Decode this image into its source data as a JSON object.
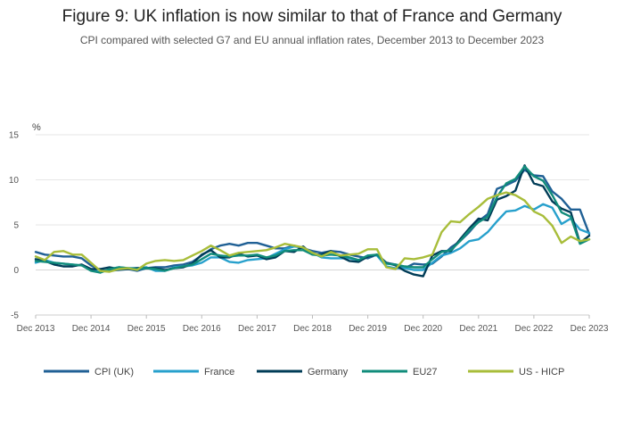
{
  "chart_data": {
    "type": "line",
    "title": "Figure 9: UK inflation is now similar to that of France and Germany",
    "subtitle": "CPI compared with selected G7 and EU annual inflation rates, December 2013 to December 2023",
    "ylabel": "%",
    "xlabel": "",
    "ylim": [
      -5,
      15
    ],
    "yticks": [
      -5,
      0,
      5,
      10,
      15
    ],
    "xticks": [
      "Dec 2013",
      "Dec 2014",
      "Dec 2015",
      "Dec 2016",
      "Dec 2017",
      "Dec 2018",
      "Dec 2019",
      "Dec 2020",
      "Dec 2021",
      "Dec 2022",
      "Dec 2023"
    ],
    "grid": "horizontal",
    "legend": "bottom",
    "x": [
      2013.917,
      2014.083,
      2014.25,
      2014.417,
      2014.583,
      2014.75,
      2014.917,
      2015.083,
      2015.25,
      2015.417,
      2015.583,
      2015.75,
      2015.917,
      2016.083,
      2016.25,
      2016.417,
      2016.583,
      2016.75,
      2016.917,
      2017.083,
      2017.25,
      2017.417,
      2017.583,
      2017.75,
      2017.917,
      2018.083,
      2018.25,
      2018.417,
      2018.583,
      2018.75,
      2018.917,
      2019.083,
      2019.25,
      2019.417,
      2019.583,
      2019.75,
      2019.917,
      2020.083,
      2020.25,
      2020.417,
      2020.583,
      2020.75,
      2020.917,
      2021.083,
      2021.25,
      2021.417,
      2021.583,
      2021.75,
      2021.917,
      2022.083,
      2022.25,
      2022.417,
      2022.583,
      2022.75,
      2022.917,
      2023.083,
      2023.25,
      2023.417,
      2023.583,
      2023.75,
      2023.917
    ],
    "series": [
      {
        "name": "CPI (UK)",
        "color": "#206095",
        "values": [
          2.0,
          1.7,
          1.6,
          1.5,
          1.5,
          1.3,
          0.5,
          0.0,
          -0.1,
          0.0,
          0.1,
          -0.1,
          0.2,
          0.3,
          0.3,
          0.5,
          0.6,
          0.9,
          1.6,
          2.3,
          2.7,
          2.9,
          2.7,
          3.0,
          3.0,
          2.7,
          2.4,
          2.4,
          2.7,
          2.4,
          2.1,
          1.9,
          2.1,
          2.0,
          1.7,
          1.5,
          1.3,
          1.7,
          0.8,
          0.6,
          0.2,
          0.7,
          0.6,
          0.7,
          1.5,
          2.5,
          3.2,
          4.2,
          5.4,
          6.2,
          9.0,
          9.4,
          9.9,
          11.1,
          10.5,
          10.4,
          8.7,
          7.9,
          6.7,
          6.7,
          4.0
        ]
      },
      {
        "name": "France",
        "color": "#27a0cc",
        "values": [
          0.8,
          1.1,
          0.8,
          0.7,
          0.6,
          0.5,
          0.1,
          -0.3,
          0.1,
          0.3,
          0.2,
          0.2,
          0.3,
          -0.1,
          -0.1,
          0.3,
          0.4,
          0.5,
          0.8,
          1.4,
          1.4,
          0.9,
          0.8,
          1.1,
          1.2,
          1.3,
          1.8,
          2.3,
          2.6,
          2.5,
          1.9,
          1.4,
          1.3,
          1.3,
          1.3,
          1.1,
          1.6,
          1.6,
          0.4,
          0.2,
          0.2,
          0.0,
          0.0,
          0.8,
          1.6,
          1.9,
          2.4,
          3.2,
          3.4,
          4.2,
          5.4,
          6.5,
          6.6,
          7.1,
          6.7,
          7.3,
          6.9,
          5.1,
          5.7,
          4.5,
          4.1
        ]
      },
      {
        "name": "Germany",
        "color": "#003c57",
        "values": [
          1.2,
          1.0,
          0.6,
          0.4,
          0.4,
          0.6,
          0.1,
          0.1,
          0.3,
          0.1,
          0.1,
          0.2,
          0.2,
          0.2,
          0.0,
          0.2,
          0.3,
          0.7,
          1.7,
          2.2,
          1.4,
          1.4,
          1.8,
          1.5,
          1.6,
          1.2,
          1.4,
          2.1,
          2.0,
          2.6,
          1.7,
          1.7,
          2.1,
          1.5,
          1.0,
          0.9,
          1.5,
          1.7,
          0.8,
          0.5,
          -0.1,
          -0.5,
          -0.7,
          1.6,
          2.1,
          2.1,
          3.4,
          4.6,
          5.7,
          5.5,
          7.8,
          8.2,
          8.8,
          11.6,
          9.6,
          9.3,
          7.6,
          6.8,
          6.4,
          3.0,
          3.8
        ]
      },
      {
        "name": "EU27",
        "color": "#118c7b",
        "values": [
          1.0,
          0.9,
          0.8,
          0.7,
          0.6,
          0.5,
          -0.1,
          -0.3,
          0.1,
          0.3,
          0.2,
          0.1,
          0.2,
          0.1,
          -0.1,
          0.2,
          0.4,
          0.6,
          1.2,
          1.8,
          1.6,
          1.5,
          1.6,
          1.6,
          1.7,
          1.4,
          1.6,
          2.1,
          2.2,
          2.2,
          1.7,
          1.6,
          1.7,
          1.6,
          1.4,
          1.1,
          1.6,
          1.7,
          0.7,
          0.6,
          0.4,
          0.3,
          0.3,
          1.2,
          2.0,
          2.2,
          3.2,
          4.4,
          5.3,
          5.9,
          8.1,
          9.6,
          10.1,
          11.5,
          10.4,
          9.9,
          8.3,
          6.4,
          5.9,
          2.9,
          3.4
        ]
      },
      {
        "name": "US - HICP",
        "color": "#a8bd3a",
        "values": [
          1.5,
          1.1,
          2.0,
          2.1,
          1.7,
          1.7,
          0.8,
          -0.1,
          -0.2,
          0.1,
          0.2,
          0.0,
          0.7,
          1.0,
          1.1,
          1.0,
          1.1,
          1.6,
          2.1,
          2.7,
          2.2,
          1.6,
          1.9,
          2.0,
          2.1,
          2.2,
          2.5,
          2.9,
          2.7,
          2.5,
          1.9,
          1.5,
          2.0,
          1.6,
          1.7,
          1.8,
          2.3,
          2.3,
          0.3,
          0.1,
          1.3,
          1.2,
          1.4,
          1.7,
          4.2,
          5.4,
          5.3,
          6.2,
          7.0,
          7.9,
          8.3,
          8.6,
          8.3,
          7.7,
          6.5,
          6.0,
          4.9,
          3.0,
          3.7,
          3.2,
          3.4
        ]
      }
    ]
  }
}
